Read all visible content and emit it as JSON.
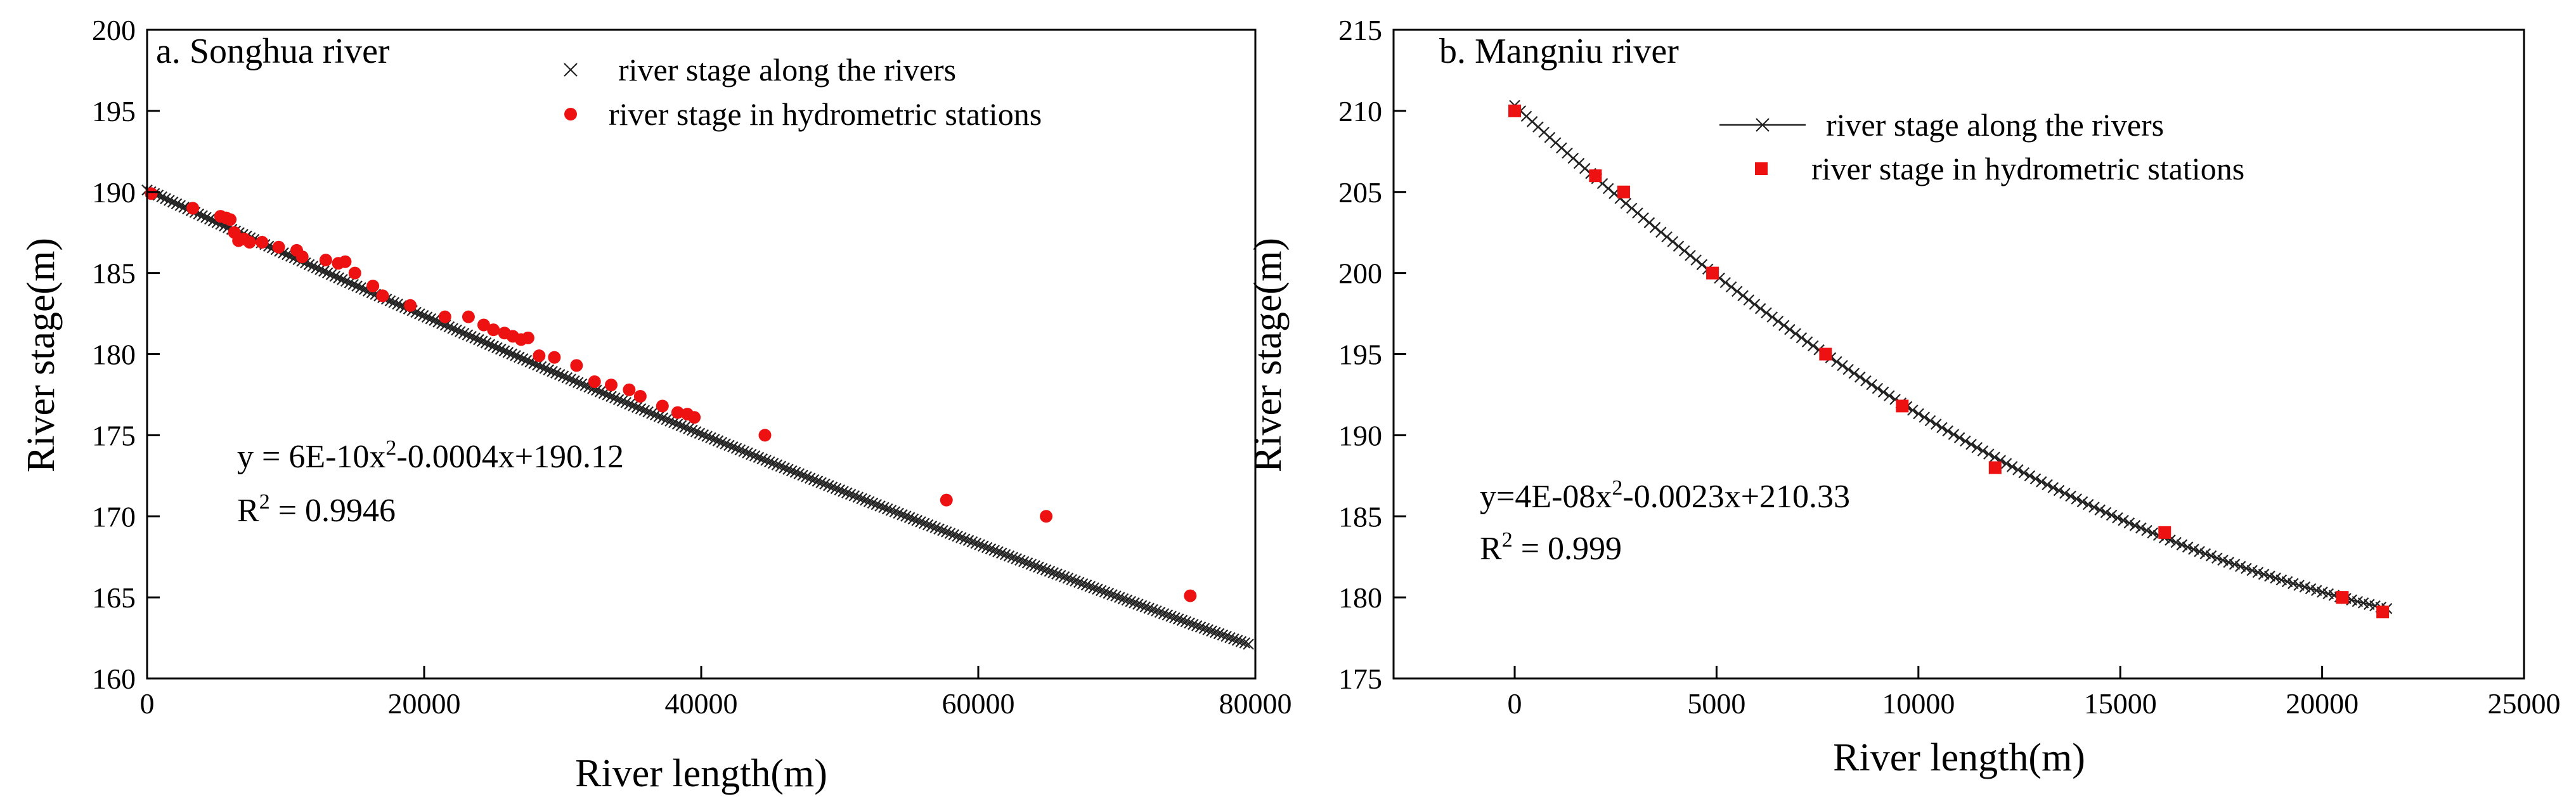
{
  "chart_data": [
    {
      "id": "a",
      "type": "scatter",
      "title": "a. Songhua river",
      "xlabel": "River length(m)",
      "ylabel": "River stage(m)",
      "xlim": [
        0,
        80000
      ],
      "ylim": [
        160,
        200
      ],
      "xticks": [
        0,
        20000,
        40000,
        60000,
        80000
      ],
      "yticks": [
        160,
        165,
        170,
        175,
        180,
        185,
        190,
        195,
        200
      ],
      "legend": "top-center",
      "series": [
        {
          "name": "river stage along the rivers",
          "marker": "x",
          "line": false,
          "fit": {
            "a": 6e-10,
            "b": -0.0004,
            "c": 190.12
          },
          "x_range": [
            0,
            79500
          ],
          "n_points": 300
        },
        {
          "name": "river stage in hydrometric stations",
          "marker": "circle",
          "color": "#ee1111",
          "points": [
            [
              300,
              189.9
            ],
            [
              3300,
              189.0
            ],
            [
              5300,
              188.5
            ],
            [
              5700,
              188.4
            ],
            [
              6000,
              188.3
            ],
            [
              6300,
              187.5
            ],
            [
              6600,
              187.0
            ],
            [
              7000,
              187.1
            ],
            [
              7400,
              186.9
            ],
            [
              8300,
              186.9
            ],
            [
              9500,
              186.6
            ],
            [
              10800,
              186.4
            ],
            [
              11200,
              186.0
            ],
            [
              12900,
              185.8
            ],
            [
              13800,
              185.6
            ],
            [
              14300,
              185.7
            ],
            [
              15000,
              185.0
            ],
            [
              16300,
              184.2
            ],
            [
              17000,
              183.6
            ],
            [
              19000,
              183.0
            ],
            [
              21500,
              182.3
            ],
            [
              23200,
              182.3
            ],
            [
              24300,
              181.8
            ],
            [
              25000,
              181.5
            ],
            [
              25800,
              181.3
            ],
            [
              26400,
              181.1
            ],
            [
              27000,
              180.9
            ],
            [
              27500,
              181.0
            ],
            [
              28300,
              179.9
            ],
            [
              29400,
              179.8
            ],
            [
              31000,
              179.3
            ],
            [
              32300,
              178.3
            ],
            [
              33500,
              178.1
            ],
            [
              34800,
              177.8
            ],
            [
              35600,
              177.4
            ],
            [
              37200,
              176.8
            ],
            [
              38300,
              176.4
            ],
            [
              39000,
              176.3
            ],
            [
              39500,
              176.1
            ],
            [
              44600,
              175.0
            ],
            [
              57700,
              171.0
            ],
            [
              64900,
              170.0
            ],
            [
              75300,
              165.1
            ]
          ]
        }
      ],
      "annotations": {
        "equation_prefix": "y = 6E-10x",
        "equation_exp": "2",
        "equation_rest": "-0.0004x+190.12",
        "r2_label": "R",
        "r2_exp": "2",
        "r2_value": " = 0.9946"
      }
    },
    {
      "id": "b",
      "type": "scatter",
      "title": "b. Mangniu river",
      "xlabel": "River length(m)",
      "ylabel": "River stage(m)",
      "xlim": [
        -3000,
        25000
      ],
      "ylim": [
        175,
        215
      ],
      "xticks": [
        0,
        5000,
        10000,
        15000,
        20000,
        25000
      ],
      "yticks": [
        175,
        180,
        185,
        190,
        195,
        200,
        205,
        210,
        215
      ],
      "legend": "top-center",
      "series": [
        {
          "name": "river stage along the rivers",
          "marker": "x",
          "line": true,
          "fit": {
            "a": 4e-08,
            "b": -0.0023,
            "c": 210.33
          },
          "x_range": [
            0,
            21600
          ],
          "n_points": 150
        },
        {
          "name": "river stage in hydrometric stations",
          "marker": "square",
          "color": "#ee1111",
          "points": [
            [
              0,
              210.0
            ],
            [
              2000,
              206.0
            ],
            [
              2700,
              205.0
            ],
            [
              4900,
              200.0
            ],
            [
              7700,
              195.0
            ],
            [
              9600,
              191.8
            ],
            [
              11900,
              188.0
            ],
            [
              16100,
              184.0
            ],
            [
              20500,
              180.0
            ],
            [
              21500,
              179.1
            ]
          ]
        }
      ],
      "annotations": {
        "equation_prefix": "y=4E-08x",
        "equation_exp": "2",
        "equation_rest": "-0.0023x+210.33",
        "r2_label": "R",
        "r2_exp": "2",
        "r2_value": " = 0.999"
      }
    }
  ]
}
